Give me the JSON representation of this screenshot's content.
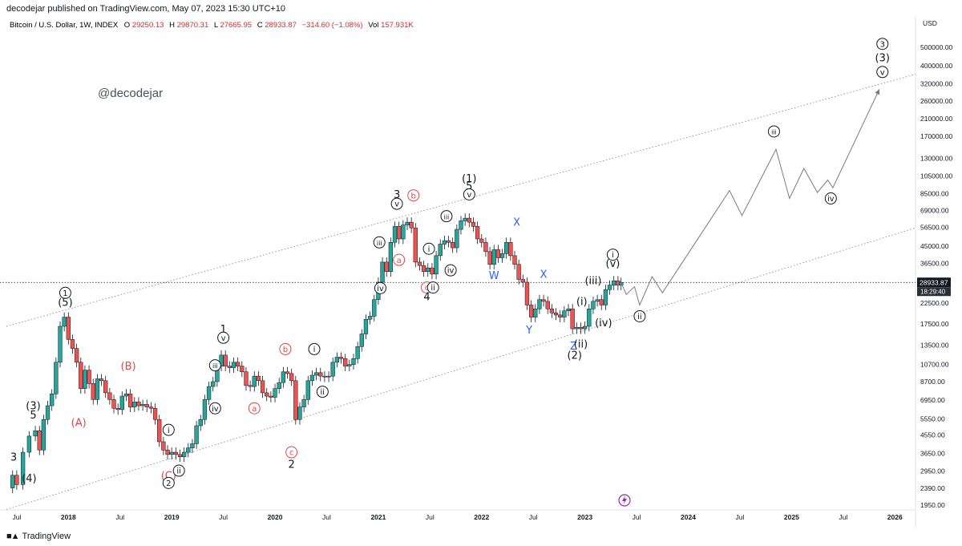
{
  "header": {
    "publisher_line": "decodejar published on TradingView.com, May 07, 2023 15:30 UTC+10"
  },
  "symbol": {
    "name": "Bitcoin / U.S. Dollar, 1W, INDEX",
    "open_label": "O",
    "open": "29250.13",
    "high_label": "H",
    "high": "29870.31",
    "low_label": "L",
    "low": "27665.95",
    "close_label": "C",
    "close": "28933.87",
    "change": "−314.60 (−1.08%)",
    "volume_label": "Vol",
    "volume": "157.931K"
  },
  "watermark": "@decodejar",
  "footer": {
    "brand": "TradingView"
  },
  "colors": {
    "up": "#26a69a",
    "down": "#ef5350",
    "candle_outline": "#131722",
    "channel": "#9598a1",
    "projection": "#787b86",
    "wave_red": "#e04848",
    "wave_blue": "#2962ff",
    "price_tag": "#131722"
  },
  "chart_data": {
    "type": "candlestick",
    "currency": "USD",
    "scale": "log",
    "ylim": [
      1950,
      600000
    ],
    "y_ticks": [
      "500000.00",
      "400000.00",
      "320000.00",
      "260000.00",
      "210000.00",
      "170000.00",
      "130000.00",
      "105000.00",
      "85000.00",
      "69000.00",
      "56500.00",
      "45000.00",
      "36500.00",
      "28933.87",
      "22500.00",
      "17500.00",
      "13500.00",
      "10700.00",
      "8700.00",
      "6950.00",
      "5550.00",
      "4550.00",
      "3650.00",
      "2950.00",
      "2390.00",
      "1950.00"
    ],
    "y_tick_values": [
      500000,
      400000,
      320000,
      260000,
      210000,
      170000,
      130000,
      105000,
      85000,
      69000,
      56500,
      45000,
      36500,
      28933.87,
      22500,
      17500,
      13500,
      10700,
      8700,
      6950,
      5550,
      4550,
      3650,
      2950,
      2390,
      1950
    ],
    "x_ticks": [
      "Jul",
      "2018",
      "Jul",
      "2019",
      "Jul",
      "2020",
      "Jul",
      "2021",
      "Jul",
      "2022",
      "Jul",
      "2023",
      "Jul",
      "2024",
      "Jul",
      "2025",
      "Jul",
      "2026"
    ],
    "x_tick_dates": [
      2017.5,
      2018.0,
      2018.5,
      2019.0,
      2019.5,
      2020.0,
      2020.5,
      2021.0,
      2021.5,
      2022.0,
      2022.5,
      2023.0,
      2023.5,
      2024.0,
      2024.5,
      2025.0,
      2025.5,
      2026.0
    ],
    "x_range": [
      2017.4,
      2026.2
    ],
    "last_price": {
      "value": "28933.87",
      "countdown": "18:29:40"
    },
    "price_path": [
      [
        2017.4,
        2400
      ],
      [
        2017.46,
        2800
      ],
      [
        2017.5,
        2500
      ],
      [
        2017.56,
        3700
      ],
      [
        2017.62,
        4500
      ],
      [
        2017.68,
        4800
      ],
      [
        2017.72,
        3800
      ],
      [
        2017.76,
        5500
      ],
      [
        2017.8,
        6500
      ],
      [
        2017.84,
        7500
      ],
      [
        2017.88,
        11000
      ],
      [
        2017.92,
        17000
      ],
      [
        2017.96,
        19000
      ],
      [
        2018.0,
        14500
      ],
      [
        2018.04,
        13000
      ],
      [
        2018.08,
        11000
      ],
      [
        2018.12,
        8000
      ],
      [
        2018.16,
        10000
      ],
      [
        2018.2,
        8500
      ],
      [
        2018.24,
        7000
      ],
      [
        2018.28,
        9000
      ],
      [
        2018.32,
        8800
      ],
      [
        2018.36,
        7600
      ],
      [
        2018.4,
        7000
      ],
      [
        2018.44,
        6300
      ],
      [
        2018.48,
        6200
      ],
      [
        2018.52,
        7300
      ],
      [
        2018.56,
        7500
      ],
      [
        2018.6,
        6400
      ],
      [
        2018.64,
        6800
      ],
      [
        2018.68,
        6500
      ],
      [
        2018.72,
        6600
      ],
      [
        2018.76,
        6400
      ],
      [
        2018.8,
        6300
      ],
      [
        2018.84,
        5500
      ],
      [
        2018.88,
        4200
      ],
      [
        2018.92,
        3800
      ],
      [
        2018.96,
        3600
      ],
      [
        2019.0,
        3700
      ],
      [
        2019.04,
        3600
      ],
      [
        2019.08,
        3500
      ],
      [
        2019.12,
        3700
      ],
      [
        2019.16,
        3900
      ],
      [
        2019.2,
        4100
      ],
      [
        2019.24,
        5100
      ],
      [
        2019.28,
        5500
      ],
      [
        2019.32,
        7000
      ],
      [
        2019.36,
        8200
      ],
      [
        2019.4,
        8700
      ],
      [
        2019.44,
        10500
      ],
      [
        2019.48,
        12000
      ],
      [
        2019.52,
        10500
      ],
      [
        2019.56,
        10300
      ],
      [
        2019.6,
        11000
      ],
      [
        2019.64,
        10500
      ],
      [
        2019.68,
        9800
      ],
      [
        2019.72,
        8300
      ],
      [
        2019.76,
        8200
      ],
      [
        2019.8,
        9300
      ],
      [
        2019.84,
        8800
      ],
      [
        2019.88,
        7600
      ],
      [
        2019.92,
        7300
      ],
      [
        2019.96,
        7200
      ],
      [
        2020.0,
        8000
      ],
      [
        2020.04,
        8600
      ],
      [
        2020.08,
        9800
      ],
      [
        2020.12,
        9600
      ],
      [
        2020.16,
        8800
      ],
      [
        2020.2,
        5500
      ],
      [
        2020.24,
        6400
      ],
      [
        2020.28,
        7000
      ],
      [
        2020.32,
        8800
      ],
      [
        2020.36,
        9400
      ],
      [
        2020.4,
        9700
      ],
      [
        2020.44,
        9300
      ],
      [
        2020.48,
        9200
      ],
      [
        2020.52,
        9300
      ],
      [
        2020.56,
        11000
      ],
      [
        2020.6,
        11700
      ],
      [
        2020.64,
        11500
      ],
      [
        2020.68,
        10500
      ],
      [
        2020.72,
        10700
      ],
      [
        2020.76,
        11500
      ],
      [
        2020.8,
        13300
      ],
      [
        2020.84,
        15500
      ],
      [
        2020.88,
        18500
      ],
      [
        2020.92,
        19200
      ],
      [
        2020.96,
        23500
      ],
      [
        2021.0,
        29000
      ],
      [
        2021.04,
        37000
      ],
      [
        2021.08,
        33000
      ],
      [
        2021.12,
        47000
      ],
      [
        2021.16,
        57000
      ],
      [
        2021.2,
        49000
      ],
      [
        2021.24,
        58000
      ],
      [
        2021.28,
        60000
      ],
      [
        2021.32,
        56000
      ],
      [
        2021.36,
        37000
      ],
      [
        2021.4,
        35500
      ],
      [
        2021.44,
        33000
      ],
      [
        2021.48,
        34500
      ],
      [
        2021.52,
        32000
      ],
      [
        2021.56,
        40000
      ],
      [
        2021.6,
        46000
      ],
      [
        2021.64,
        48000
      ],
      [
        2021.68,
        47000
      ],
      [
        2021.72,
        44000
      ],
      [
        2021.76,
        55000
      ],
      [
        2021.8,
        61000
      ],
      [
        2021.84,
        63000
      ],
      [
        2021.88,
        60000
      ],
      [
        2021.92,
        57000
      ],
      [
        2021.96,
        49000
      ],
      [
        2022.0,
        47000
      ],
      [
        2022.04,
        42000
      ],
      [
        2022.08,
        36000
      ],
      [
        2022.12,
        43000
      ],
      [
        2022.16,
        39000
      ],
      [
        2022.2,
        41000
      ],
      [
        2022.24,
        47000
      ],
      [
        2022.28,
        40000
      ],
      [
        2022.32,
        36000
      ],
      [
        2022.36,
        30000
      ],
      [
        2022.4,
        29000
      ],
      [
        2022.44,
        22000
      ],
      [
        2022.48,
        19000
      ],
      [
        2022.52,
        21000
      ],
      [
        2022.56,
        23500
      ],
      [
        2022.6,
        23000
      ],
      [
        2022.64,
        21000
      ],
      [
        2022.68,
        20000
      ],
      [
        2022.72,
        19500
      ],
      [
        2022.76,
        19000
      ],
      [
        2022.8,
        20500
      ],
      [
        2022.84,
        21000
      ],
      [
        2022.88,
        16500
      ],
      [
        2022.92,
        16800
      ],
      [
        2022.96,
        16500
      ],
      [
        2023.0,
        17000
      ],
      [
        2023.04,
        21000
      ],
      [
        2023.08,
        23000
      ],
      [
        2023.12,
        23500
      ],
      [
        2023.16,
        22000
      ],
      [
        2023.2,
        26500
      ],
      [
        2023.24,
        28000
      ],
      [
        2023.28,
        29500
      ],
      [
        2023.32,
        28000
      ],
      [
        2023.35,
        28933.87
      ]
    ],
    "channel_lines": [
      {
        "from": [
          2017.4,
          17000
        ],
        "to": [
          2026.2,
          360000
        ]
      },
      {
        "from": [
          2017.4,
          1850
        ],
        "to": [
          2026.2,
          56000
        ]
      }
    ],
    "projection_path": [
      [
        2023.35,
        28933.87
      ],
      [
        2023.4,
        25000
      ],
      [
        2023.48,
        27500
      ],
      [
        2023.53,
        22000
      ],
      [
        2023.65,
        31000
      ],
      [
        2023.75,
        25500
      ],
      [
        2024.4,
        88000
      ],
      [
        2024.52,
        65000
      ],
      [
        2024.85,
        145000
      ],
      [
        2024.98,
        80000
      ],
      [
        2025.12,
        115000
      ],
      [
        2025.25,
        86000
      ],
      [
        2025.35,
        100000
      ],
      [
        2025.4,
        91000
      ],
      [
        2025.85,
        300000
      ]
    ],
    "wave_labels": [
      {
        "text": "3",
        "x": 2017.47,
        "y": 3500,
        "style": "plain",
        "color": "black"
      },
      {
        "text": "(4)",
        "x": 2017.62,
        "y": 2700,
        "style": "plain",
        "color": "black"
      },
      {
        "text": "(3)",
        "x": 2017.66,
        "y": 6500,
        "style": "plain",
        "color": "black"
      },
      {
        "text": "5",
        "x": 2017.66,
        "y": 5800,
        "style": "plain",
        "color": "black"
      },
      {
        "text": "1",
        "x": 2017.97,
        "y": 25500,
        "style": "circle",
        "color": "black"
      },
      {
        "text": "(5)",
        "x": 2017.97,
        "y": 22800,
        "style": "plain",
        "color": "black"
      },
      {
        "text": "(A)",
        "x": 2018.1,
        "y": 5300,
        "style": "plain",
        "color": "red"
      },
      {
        "text": "(B)",
        "x": 2018.58,
        "y": 10500,
        "style": "plain",
        "color": "red"
      },
      {
        "text": "(C)",
        "x": 2018.97,
        "y": 2790,
        "style": "plain",
        "color": "red"
      },
      {
        "text": "2",
        "x": 2018.97,
        "y": 2550,
        "style": "circle",
        "color": "black"
      },
      {
        "text": "i",
        "x": 2018.97,
        "y": 4850,
        "style": "circle",
        "color": "black"
      },
      {
        "text": "ii",
        "x": 2019.07,
        "y": 2960,
        "style": "circle",
        "color": "black"
      },
      {
        "text": "iii",
        "x": 2019.42,
        "y": 10600,
        "style": "circle",
        "color": "black"
      },
      {
        "text": "iv",
        "x": 2019.42,
        "y": 6300,
        "style": "circle",
        "color": "black"
      },
      {
        "text": "1",
        "x": 2019.5,
        "y": 16400,
        "style": "plain",
        "color": "black"
      },
      {
        "text": "v",
        "x": 2019.5,
        "y": 14800,
        "style": "circle",
        "color": "black"
      },
      {
        "text": "a",
        "x": 2019.8,
        "y": 6300,
        "style": "circle",
        "color": "red"
      },
      {
        "text": "b",
        "x": 2020.1,
        "y": 12900,
        "style": "circle",
        "color": "red"
      },
      {
        "text": "i",
        "x": 2020.38,
        "y": 12900,
        "style": "circle",
        "color": "black"
      },
      {
        "text": "ii",
        "x": 2020.46,
        "y": 7700,
        "style": "circle",
        "color": "black"
      },
      {
        "text": "c",
        "x": 2020.16,
        "y": 3700,
        "style": "circle",
        "color": "red"
      },
      {
        "text": "2",
        "x": 2020.16,
        "y": 3200,
        "style": "plain",
        "color": "black"
      },
      {
        "text": "iii",
        "x": 2021.01,
        "y": 47000,
        "style": "circle",
        "color": "black"
      },
      {
        "text": "iv",
        "x": 2021.02,
        "y": 27000,
        "style": "circle",
        "color": "black"
      },
      {
        "text": "a",
        "x": 2021.2,
        "y": 38000,
        "style": "circle",
        "color": "red"
      },
      {
        "text": "3",
        "x": 2021.18,
        "y": 84000,
        "style": "plain",
        "color": "black"
      },
      {
        "text": "v",
        "x": 2021.18,
        "y": 75000,
        "style": "circle",
        "color": "black"
      },
      {
        "text": "b",
        "x": 2021.34,
        "y": 83000,
        "style": "circle",
        "color": "red"
      },
      {
        "text": "i",
        "x": 2021.49,
        "y": 43500,
        "style": "circle",
        "color": "black"
      },
      {
        "text": "c",
        "x": 2021.47,
        "y": 27200,
        "style": "circle",
        "color": "red"
      },
      {
        "text": "ii",
        "x": 2021.53,
        "y": 27200,
        "style": "circle",
        "color": "black"
      },
      {
        "text": "4",
        "x": 2021.47,
        "y": 24300,
        "style": "plain",
        "color": "black"
      },
      {
        "text": "iii",
        "x": 2021.66,
        "y": 64500,
        "style": "circle",
        "color": "black"
      },
      {
        "text": "iv",
        "x": 2021.7,
        "y": 33500,
        "style": "circle",
        "color": "black"
      },
      {
        "text": "(1)",
        "x": 2021.88,
        "y": 102000,
        "style": "plain",
        "color": "black"
      },
      {
        "text": "5",
        "x": 2021.88,
        "y": 93000,
        "style": "plain",
        "color": "black"
      },
      {
        "text": "v",
        "x": 2021.88,
        "y": 84000,
        "style": "circle",
        "color": "black"
      },
      {
        "text": "W",
        "x": 2022.12,
        "y": 31500,
        "style": "plain",
        "color": "blue"
      },
      {
        "text": "X",
        "x": 2022.34,
        "y": 60000,
        "style": "plain",
        "color": "blue"
      },
      {
        "text": "X",
        "x": 2022.6,
        "y": 32000,
        "style": "plain",
        "color": "blue"
      },
      {
        "text": "Y",
        "x": 2022.46,
        "y": 16300,
        "style": "plain",
        "color": "blue"
      },
      {
        "text": "Z",
        "x": 2022.89,
        "y": 13400,
        "style": "plain",
        "color": "blue"
      },
      {
        "text": "(ii)",
        "x": 2022.96,
        "y": 13700,
        "style": "plain",
        "color": "black"
      },
      {
        "text": "(2)",
        "x": 2022.9,
        "y": 12000,
        "style": "plain",
        "color": "black"
      },
      {
        "text": "(i)",
        "x": 2022.97,
        "y": 23000,
        "style": "plain",
        "color": "black"
      },
      {
        "text": "(iii)",
        "x": 2023.08,
        "y": 29500,
        "style": "plain",
        "color": "black"
      },
      {
        "text": "(iv)",
        "x": 2023.18,
        "y": 17800,
        "style": "plain",
        "color": "black"
      },
      {
        "text": "i",
        "x": 2023.27,
        "y": 40500,
        "style": "circle",
        "color": "black"
      },
      {
        "text": "(v)",
        "x": 2023.27,
        "y": 36500,
        "style": "plain",
        "color": "black"
      },
      {
        "text": "ii",
        "x": 2023.53,
        "y": 19200,
        "style": "circle",
        "color": "black"
      },
      {
        "text": "iii",
        "x": 2024.83,
        "y": 180000,
        "style": "circle",
        "color": "black"
      },
      {
        "text": "iv",
        "x": 2025.38,
        "y": 80000,
        "style": "circle",
        "color": "black"
      },
      {
        "text": "3",
        "x": 2025.88,
        "y": 520000,
        "style": "circle",
        "color": "black"
      },
      {
        "text": "(3)",
        "x": 2025.88,
        "y": 440000,
        "style": "plain",
        "color": "black"
      },
      {
        "text": "v",
        "x": 2025.88,
        "y": 370000,
        "style": "circle",
        "color": "black"
      }
    ]
  }
}
